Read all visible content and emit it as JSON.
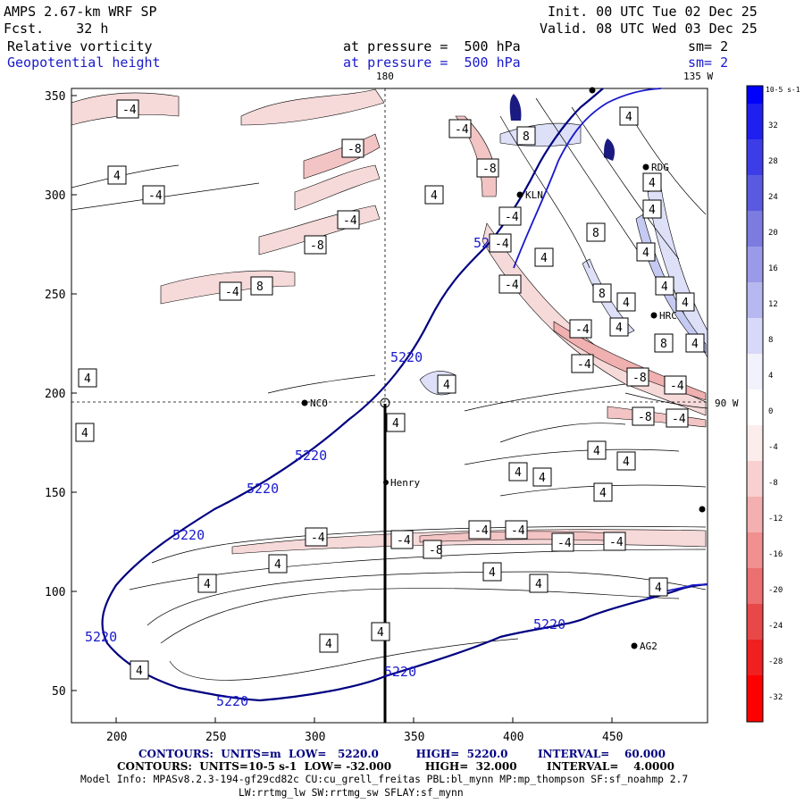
{
  "header": {
    "model": "AMPS 2.67-km WRF SP",
    "fcst": "Fcst.    32 h",
    "init": "Init. 00 UTC Tue 02 Dec 25",
    "valid": "Valid. 08 UTC Wed 03 Dec 25",
    "field1": "Relative vorticity",
    "field2": "Geopotential height",
    "pressure1": "at pressure =  500 hPa",
    "pressure2": "at pressure =  500 hPa",
    "sm1": "sm= 2",
    "sm2": "sm= 2"
  },
  "map": {
    "meridian_top": "180",
    "meridian_top_right": "135 W",
    "meridian_right": "90 W",
    "x_ticks": [
      "200",
      "250",
      "300",
      "350",
      "400",
      "450"
    ],
    "y_ticks": [
      "350",
      "300",
      "250",
      "200",
      "150",
      "100",
      "50"
    ],
    "stations": [
      {
        "name": "NCO",
        "x": 294,
        "y": 195
      },
      {
        "name": "Henry",
        "x": 333,
        "y": 155
      },
      {
        "name": "KLN",
        "x": 401,
        "y": 300
      },
      {
        "name": "RDG",
        "x": 468,
        "y": 314
      },
      {
        "name": "HRC",
        "x": 468,
        "y": 239
      },
      {
        "name": "AG2",
        "x": 460,
        "y": 72
      }
    ],
    "height_labels": [
      "5220",
      "5220",
      "5220",
      "5220",
      "5220",
      "5220",
      "5220",
      "5220",
      "5220"
    ],
    "vorticity_labels": [
      "-4",
      "4",
      "-4",
      "4",
      "-8",
      "-4",
      "-8",
      "4",
      "-4",
      "8",
      "-4",
      "-8",
      "4",
      "-4",
      "4",
      "4",
      "-4",
      "4",
      "-4",
      "8",
      "8",
      "8",
      "4",
      "-4",
      "4",
      "4",
      "-8",
      "-4",
      "-4",
      "-8",
      "-4",
      "4",
      "4",
      "4",
      "4",
      "4",
      "4",
      "-4",
      "-4",
      "-4",
      "-4",
      "-4",
      "-4",
      "-8",
      "4",
      "4",
      "4",
      "4",
      "4",
      "4",
      "4",
      "4",
      "4",
      "4",
      "4",
      "4",
      "8",
      "4"
    ]
  },
  "colorbar": {
    "unit": "10-5 s-1",
    "labels": [
      "32",
      "28",
      "24",
      "20",
      "16",
      "12",
      "8",
      "4",
      "0",
      "-4",
      "-8",
      "-12",
      "-16",
      "-20",
      "-24",
      "-28",
      "-32"
    ]
  },
  "footer": {
    "line1": "CONTOURS:  UNITS=m  LOW=   5220.0          HIGH=  5220.0        INTERVAL=    60.000",
    "line2": "CONTOURS:  UNITS=10-5 s-1  LOW= -32.000         HIGH=  32.000        INTERVAL=    4.0000",
    "line3": "Model Info: MPASv8.2.3-194-gf29cd82c CU:cu_grell_freitas PBL:bl_mynn MP:mp_thompson SF:sf_noahmp 2.7",
    "line4": "LW:rrtmg_lw SW:rrtmg_sw SFLAY:sf_mynn"
  }
}
